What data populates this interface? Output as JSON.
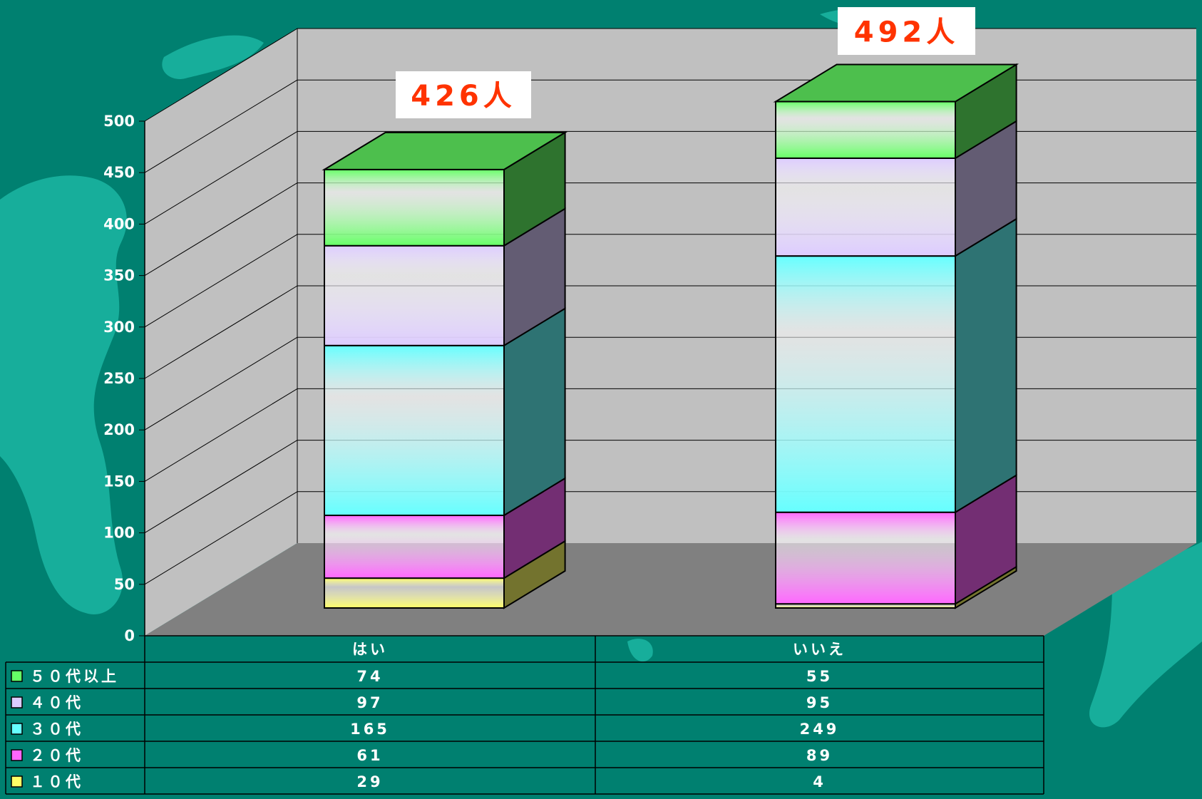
{
  "chart_data": {
    "type": "bar",
    "stacked": true,
    "three_d": true,
    "categories": [
      "はい",
      "いいえ"
    ],
    "series": [
      {
        "name": "１０代",
        "values": [
          29,
          4
        ],
        "color": "#ffff66"
      },
      {
        "name": "２０代",
        "values": [
          61,
          89
        ],
        "color": "#ff66ff"
      },
      {
        "name": "３０代",
        "values": [
          165,
          249
        ],
        "color": "#66ffff"
      },
      {
        "name": "４０代",
        "values": [
          97,
          95
        ],
        "color": "#ddccff"
      },
      {
        "name": "５０代以上",
        "values": [
          74,
          55
        ],
        "color": "#66ff66"
      }
    ],
    "totals": [
      "426人",
      "492人"
    ],
    "ylim": [
      0,
      500
    ],
    "yticks": [
      "0",
      "50",
      "100",
      "150",
      "200",
      "250",
      "300",
      "350",
      "400",
      "450",
      "500"
    ],
    "grid": true,
    "legend": "data-table-left"
  },
  "colors": {
    "background": "#008070",
    "wall": "#c0c0c0",
    "floor": "#808080",
    "total_label": "#ff3300",
    "total_label_bg": "#ffffff"
  }
}
